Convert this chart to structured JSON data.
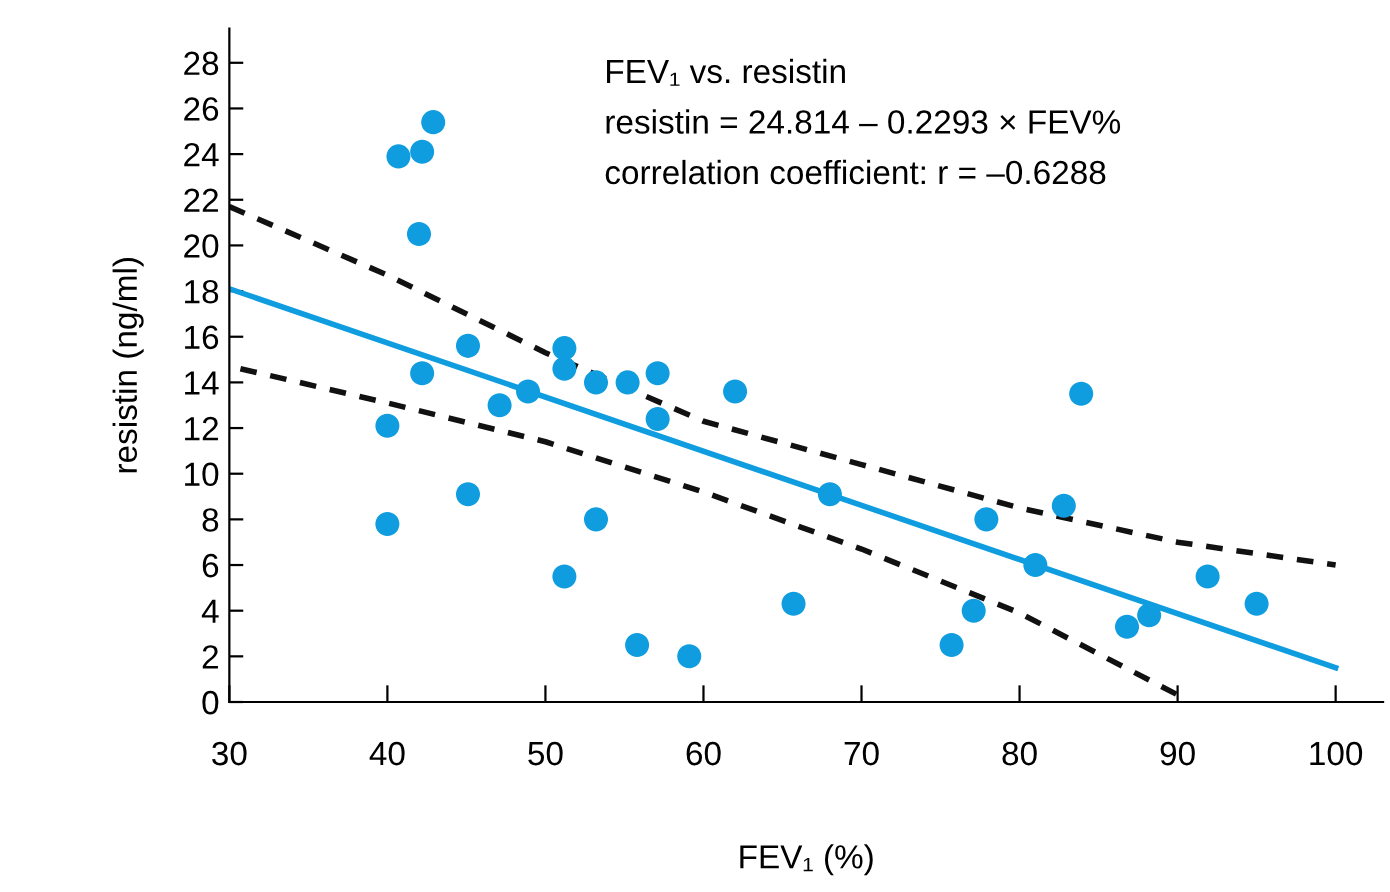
{
  "chart_data": {
    "type": "scatter",
    "xlabel": "FEV₁ (%)",
    "ylabel": "resistin (ng/ml)",
    "annotations": [
      "FEV₁ vs. resistin",
      "resistin = 24.814 – 0.2293 × FEV%",
      "correlation coefficient: r = –0.6288"
    ],
    "xlim": [
      30,
      103
    ],
    "ylim": [
      0,
      29.5
    ],
    "xticks": [
      30,
      40,
      50,
      60,
      70,
      80,
      90,
      100
    ],
    "yticks": [
      0,
      2,
      4,
      6,
      8,
      10,
      12,
      14,
      16,
      18,
      20,
      22,
      24,
      26,
      28
    ],
    "grid": false,
    "legend": false,
    "series": [
      {
        "color": "#0f9ddf",
        "marker": "circle",
        "x": [
          40.0,
          40.0,
          40.7,
          42.2,
          42.9,
          42.0,
          42.2,
          45.1,
          45.1,
          47.1,
          48.9,
          51.2,
          51.2,
          53.2,
          53.2,
          51.2,
          55.2,
          57.1,
          57.1,
          55.8,
          59.1,
          62.0,
          65.7,
          68.0,
          75.7,
          77.1,
          77.9,
          82.8,
          83.9,
          81.0,
          86.8,
          88.2,
          91.9,
          95.0
        ],
        "values": [
          12.1,
          7.8,
          23.9,
          24.1,
          25.4,
          20.5,
          14.4,
          15.6,
          9.1,
          13.0,
          13.6,
          15.5,
          14.6,
          14.0,
          8.0,
          5.5,
          14.0,
          14.4,
          12.4,
          2.5,
          2.0,
          13.6,
          4.3,
          9.1,
          2.5,
          4.0,
          8.0,
          8.6,
          13.5,
          6.0,
          3.3,
          3.8,
          5.5,
          4.3
        ]
      },
      {
        "type": "line",
        "color": "#0f9ddf",
        "line_style": "solid",
        "marker": "none",
        "x": [
          30,
          100
        ],
        "values": [
          18.1,
          1.5
        ]
      },
      {
        "type": "line",
        "color": "#111111",
        "line_style": "dashed",
        "marker": "none",
        "x": [
          30,
          40,
          50,
          60,
          70,
          80,
          90,
          100
        ],
        "values": [
          21.7,
          18.7,
          15.3,
          12.3,
          10.4,
          8.5,
          7.0,
          6.0
        ]
      },
      {
        "type": "line",
        "color": "#111111",
        "line_style": "dashed",
        "marker": "none",
        "x": [
          30.7,
          40,
          50,
          60,
          70,
          80,
          90.6
        ],
        "values": [
          14.6,
          13.1,
          11.4,
          9.2,
          6.7,
          3.9,
          0.1
        ]
      }
    ]
  }
}
